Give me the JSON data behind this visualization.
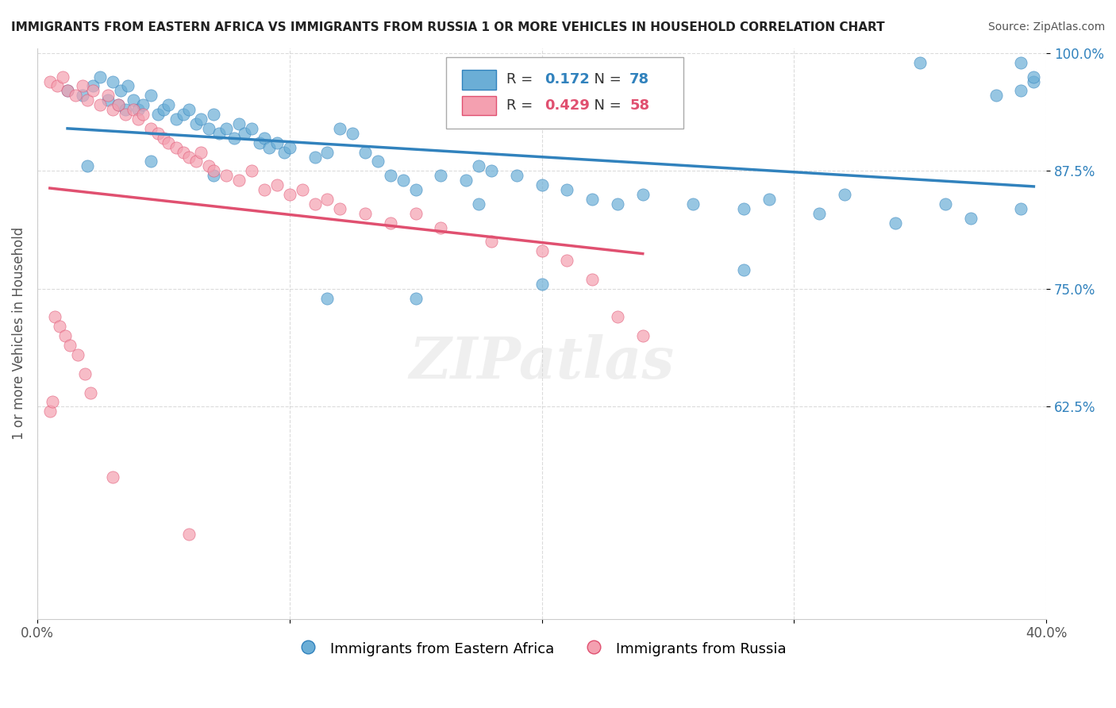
{
  "title": "IMMIGRANTS FROM EASTERN AFRICA VS IMMIGRANTS FROM RUSSIA 1 OR MORE VEHICLES IN HOUSEHOLD CORRELATION CHART",
  "source": "Source: ZipAtlas.com",
  "ylabel": "1 or more Vehicles in Household",
  "xlabel": "",
  "legend_label_blue": "Immigrants from Eastern Africa",
  "legend_label_pink": "Immigrants from Russia",
  "R_blue": 0.172,
  "N_blue": 78,
  "R_pink": 0.429,
  "N_pink": 58,
  "color_blue": "#6baed6",
  "color_pink": "#f4a0b0",
  "line_color_blue": "#3182bd",
  "line_color_pink": "#e05070",
  "xlim": [
    0.0,
    0.4
  ],
  "ylim": [
    0.4,
    1.005
  ],
  "xticks": [
    0.0,
    0.1,
    0.2,
    0.3,
    0.4
  ],
  "xticklabels": [
    "0.0%",
    "",
    "",
    "",
    "40.0%"
  ],
  "yticks": [
    0.625,
    0.75,
    0.875,
    1.0
  ],
  "yticklabels": [
    "62.5%",
    "75.0%",
    "87.5%",
    "100.0%"
  ],
  "blue_x": [
    0.012,
    0.018,
    0.022,
    0.025,
    0.028,
    0.03,
    0.032,
    0.033,
    0.035,
    0.036,
    0.038,
    0.04,
    0.042,
    0.045,
    0.048,
    0.05,
    0.052,
    0.055,
    0.058,
    0.06,
    0.063,
    0.065,
    0.068,
    0.07,
    0.072,
    0.075,
    0.078,
    0.08,
    0.082,
    0.085,
    0.088,
    0.09,
    0.092,
    0.095,
    0.098,
    0.1,
    0.11,
    0.115,
    0.12,
    0.125,
    0.13,
    0.135,
    0.14,
    0.145,
    0.15,
    0.16,
    0.17,
    0.175,
    0.18,
    0.19,
    0.2,
    0.21,
    0.22,
    0.23,
    0.24,
    0.26,
    0.28,
    0.29,
    0.31,
    0.32,
    0.34,
    0.36,
    0.37,
    0.39,
    0.02,
    0.045,
    0.07,
    0.115,
    0.28,
    0.15,
    0.175,
    0.2,
    0.35,
    0.39,
    0.38,
    0.39,
    0.395,
    0.395
  ],
  "blue_y": [
    0.96,
    0.955,
    0.965,
    0.975,
    0.95,
    0.97,
    0.945,
    0.96,
    0.94,
    0.965,
    0.95,
    0.94,
    0.945,
    0.955,
    0.935,
    0.94,
    0.945,
    0.93,
    0.935,
    0.94,
    0.925,
    0.93,
    0.92,
    0.935,
    0.915,
    0.92,
    0.91,
    0.925,
    0.915,
    0.92,
    0.905,
    0.91,
    0.9,
    0.905,
    0.895,
    0.9,
    0.89,
    0.895,
    0.92,
    0.915,
    0.895,
    0.885,
    0.87,
    0.865,
    0.855,
    0.87,
    0.865,
    0.88,
    0.875,
    0.87,
    0.86,
    0.855,
    0.845,
    0.84,
    0.85,
    0.84,
    0.835,
    0.845,
    0.83,
    0.85,
    0.82,
    0.84,
    0.825,
    0.835,
    0.88,
    0.885,
    0.87,
    0.74,
    0.77,
    0.74,
    0.84,
    0.755,
    0.99,
    0.99,
    0.955,
    0.96,
    0.97,
    0.975
  ],
  "pink_x": [
    0.005,
    0.008,
    0.01,
    0.012,
    0.015,
    0.018,
    0.02,
    0.022,
    0.025,
    0.028,
    0.03,
    0.032,
    0.035,
    0.038,
    0.04,
    0.042,
    0.045,
    0.048,
    0.05,
    0.052,
    0.055,
    0.058,
    0.06,
    0.063,
    0.065,
    0.068,
    0.07,
    0.075,
    0.08,
    0.085,
    0.09,
    0.095,
    0.1,
    0.105,
    0.11,
    0.115,
    0.12,
    0.13,
    0.14,
    0.15,
    0.16,
    0.18,
    0.2,
    0.21,
    0.22,
    0.23,
    0.24,
    0.007,
    0.009,
    0.011,
    0.013,
    0.016,
    0.019,
    0.021,
    0.005,
    0.006,
    0.03,
    0.06
  ],
  "pink_y": [
    0.97,
    0.965,
    0.975,
    0.96,
    0.955,
    0.965,
    0.95,
    0.96,
    0.945,
    0.955,
    0.94,
    0.945,
    0.935,
    0.94,
    0.93,
    0.935,
    0.92,
    0.915,
    0.91,
    0.905,
    0.9,
    0.895,
    0.89,
    0.885,
    0.895,
    0.88,
    0.875,
    0.87,
    0.865,
    0.875,
    0.855,
    0.86,
    0.85,
    0.855,
    0.84,
    0.845,
    0.835,
    0.83,
    0.82,
    0.83,
    0.815,
    0.8,
    0.79,
    0.78,
    0.76,
    0.72,
    0.7,
    0.72,
    0.71,
    0.7,
    0.69,
    0.68,
    0.66,
    0.64,
    0.62,
    0.63,
    0.55,
    0.49
  ],
  "background_color": "#ffffff",
  "grid_color": "#cccccc"
}
